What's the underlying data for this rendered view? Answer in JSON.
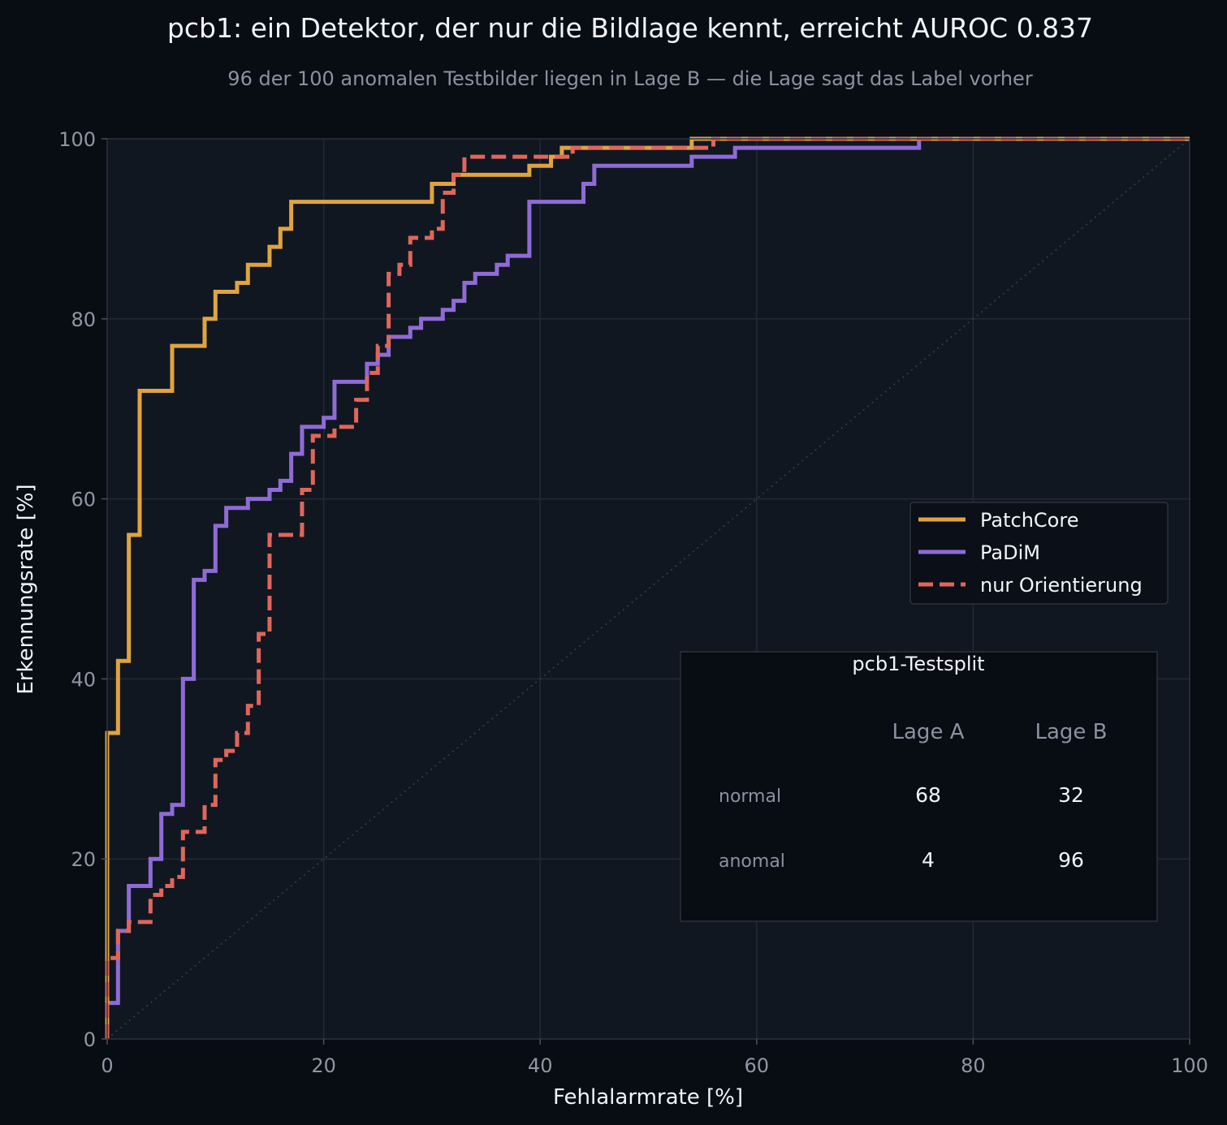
{
  "chart_data": {
    "type": "line",
    "title": "pcb1: ein Detektor, der nur die Bildlage kennt, erreicht AUROC 0.837",
    "subtitle": "96 der 100 anomalen Testbilder liegen in Lage B — die Lage sagt das Label vorher",
    "xlabel": "Fehlalarmrate [%]",
    "ylabel": "Erkennungsrate [%]",
    "xlim": [
      0,
      100
    ],
    "ylim": [
      0,
      100
    ],
    "xticks": [
      "0",
      "20",
      "40",
      "60",
      "80",
      "100"
    ],
    "yticks": [
      "0",
      "20",
      "40",
      "60",
      "80",
      "100"
    ],
    "grid": true,
    "diagonal_reference": true,
    "legend_position": "right",
    "series": [
      {
        "name": "PatchCore",
        "color": "#e0a43f",
        "style": "solid",
        "x": [
          0,
          0,
          1,
          1,
          2,
          2,
          3,
          3,
          6,
          6,
          9,
          9,
          10,
          10,
          12,
          12,
          13,
          13,
          15,
          15,
          16,
          16,
          17,
          17,
          30,
          30,
          32,
          32,
          39,
          39,
          41,
          41,
          42,
          42,
          54,
          54,
          100
        ],
        "y": [
          0,
          34,
          34,
          42,
          42,
          56,
          56,
          72,
          72,
          77,
          77,
          80,
          80,
          83,
          83,
          84,
          84,
          86,
          86,
          88,
          88,
          90,
          90,
          93,
          93,
          95,
          95,
          96,
          96,
          97,
          97,
          98,
          98,
          99,
          99,
          100,
          100
        ]
      },
      {
        "name": "PaDiM",
        "color": "#8f6bd6",
        "style": "solid",
        "x": [
          0,
          0,
          1,
          1,
          2,
          2,
          4,
          4,
          5,
          5,
          6,
          6,
          7,
          7,
          8,
          8,
          9,
          9,
          10,
          10,
          11,
          11,
          13,
          13,
          15,
          15,
          16,
          16,
          17,
          17,
          18,
          18,
          20,
          20,
          21,
          21,
          24,
          24,
          25,
          25,
          26,
          26,
          28,
          28,
          29,
          29,
          31,
          31,
          32,
          32,
          33,
          33,
          34,
          34,
          36,
          36,
          37,
          37,
          39,
          39,
          44,
          44,
          45,
          45,
          54,
          54,
          58,
          58,
          75,
          75,
          100
        ],
        "y": [
          0,
          4,
          4,
          12,
          12,
          17,
          17,
          20,
          20,
          25,
          25,
          26,
          26,
          40,
          40,
          51,
          51,
          52,
          52,
          57,
          57,
          59,
          59,
          60,
          60,
          61,
          61,
          62,
          62,
          65,
          65,
          68,
          68,
          69,
          69,
          73,
          73,
          75,
          75,
          76,
          76,
          78,
          78,
          79,
          79,
          80,
          80,
          81,
          81,
          82,
          82,
          84,
          84,
          85,
          85,
          86,
          86,
          87,
          87,
          93,
          93,
          95,
          95,
          97,
          97,
          98,
          98,
          99,
          99,
          100,
          100
        ]
      },
      {
        "name": "nur Orientierung",
        "color": "#e0665a",
        "style": "dashed",
        "x": [
          0,
          0,
          1,
          1,
          2,
          2,
          4,
          4,
          5,
          5,
          6,
          6,
          7,
          7,
          8,
          8,
          9,
          9,
          10,
          10,
          11,
          11,
          12,
          12,
          13,
          13,
          14,
          14,
          15,
          15,
          18,
          18,
          19,
          19,
          21,
          21,
          23,
          23,
          24,
          24,
          25,
          25,
          26,
          26,
          27,
          27,
          28,
          28,
          30,
          30,
          31,
          31,
          32,
          32,
          33,
          33,
          43,
          43,
          56,
          56,
          100
        ],
        "y": [
          0,
          9,
          9,
          12,
          12,
          13,
          13,
          16,
          16,
          17,
          17,
          18,
          18,
          23,
          23,
          23,
          23,
          26,
          26,
          31,
          31,
          32,
          32,
          34,
          34,
          37,
          37,
          45,
          45,
          56,
          56,
          61,
          61,
          67,
          67,
          68,
          68,
          71,
          71,
          74,
          74,
          77,
          77,
          85,
          85,
          86,
          86,
          89,
          89,
          90,
          90,
          94,
          94,
          96,
          96,
          98,
          98,
          99,
          99,
          100,
          100
        ]
      }
    ]
  },
  "table": {
    "title": "pcb1-Testsplit",
    "columns": [
      "Lage A",
      "Lage B"
    ],
    "rows": [
      {
        "label": "normal",
        "values": [
          "68",
          "32"
        ]
      },
      {
        "label": "anomal",
        "values": [
          "4",
          "96"
        ]
      }
    ]
  }
}
